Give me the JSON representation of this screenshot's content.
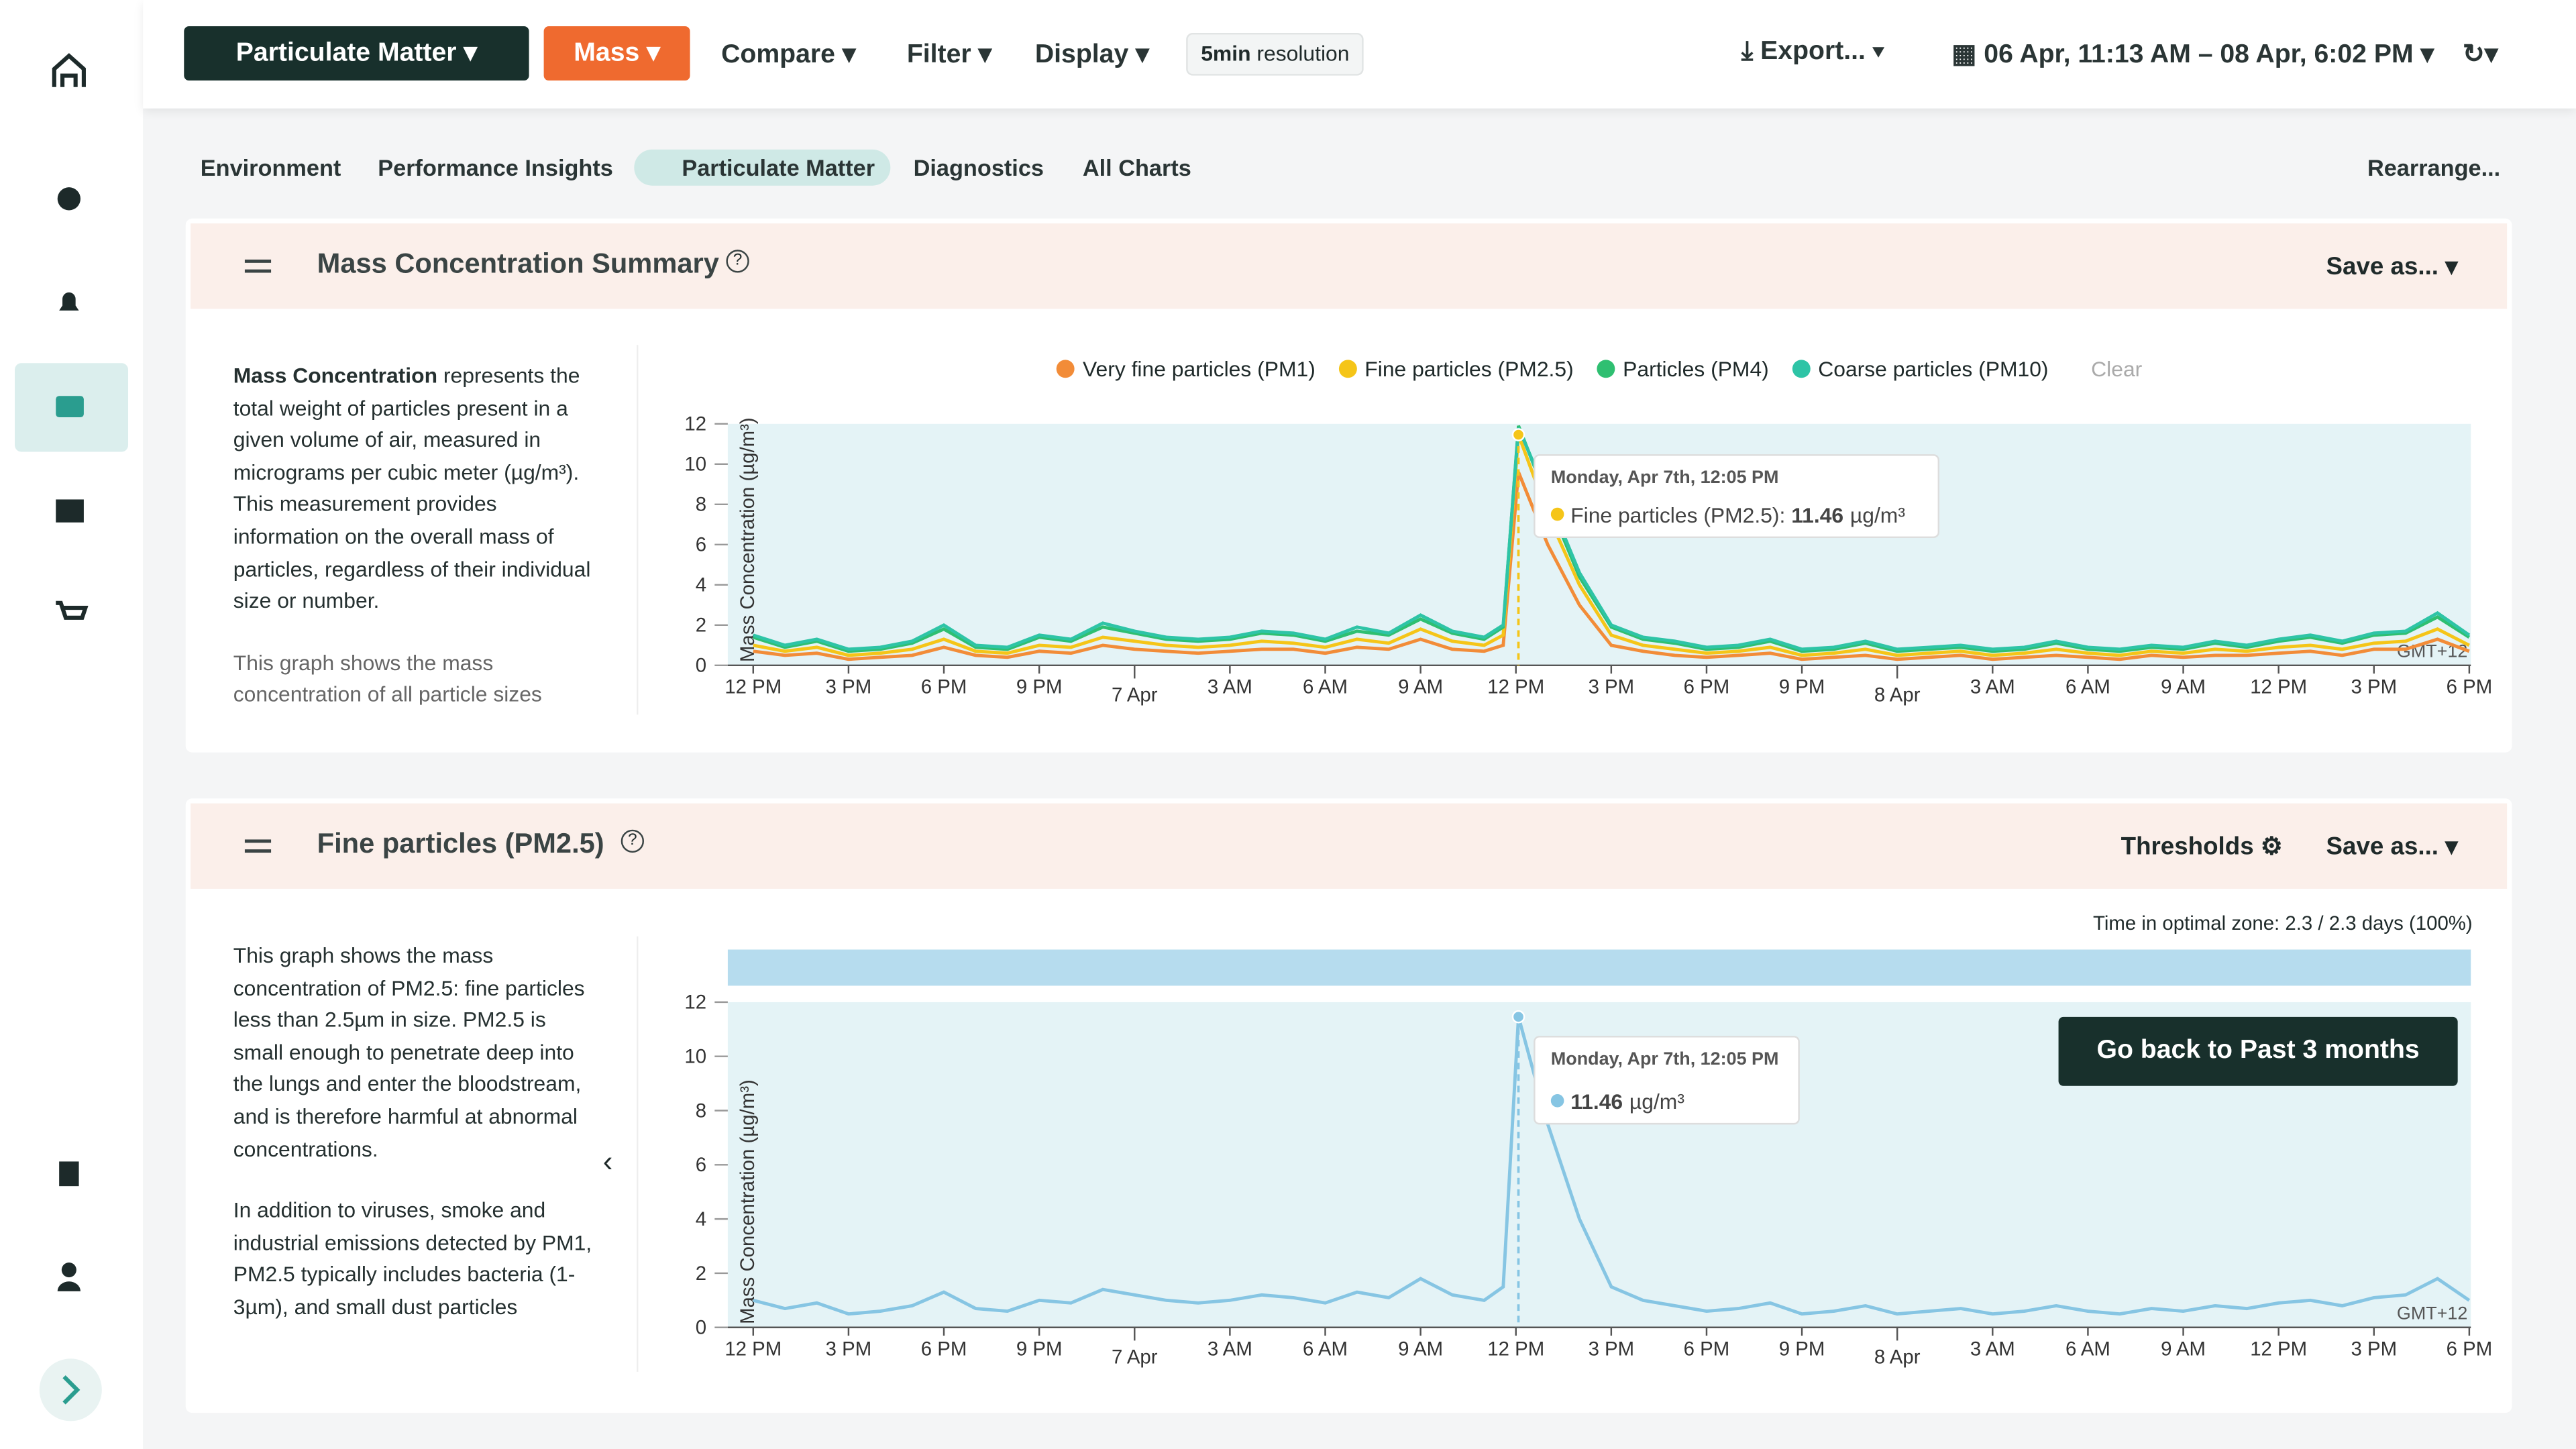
{
  "nav": {
    "product": "Particulate Matter",
    "mode": "Mass",
    "compare": "Compare",
    "filter": "Filter",
    "display": "Display",
    "resolution_value": "5min",
    "resolution_unit": "resolution",
    "export": "Export...",
    "range": "06 Apr, 11:13 AM – 08 Apr, 6:02 PM"
  },
  "tabs": [
    "Environment",
    "Performance Insights",
    "Particulate Matter",
    "Diagnostics",
    "All Charts"
  ],
  "rearrange": "Rearrange...",
  "panels": [
    {
      "title": "Mass Concentration Summary",
      "save": "Save as...",
      "description_bold": "Mass Concentration",
      "description": " represents the total weight of particles present in a given volume of air, measured in micrograms per cubic meter (µg/m³). This measurement provides information on the overall mass of particles, regardless of their individual size or number.",
      "description2": "This graph shows the mass concentration of all particle sizes"
    },
    {
      "title": "Fine particles (PM2.5)",
      "thresholds": "Thresholds",
      "save": "Save as...",
      "optimal": "Time in optimal zone: 2.3 / 2.3 days (100%)",
      "description": "This graph shows the mass concentration of PM2.5: fine particles less than 2.5µm in size. PM2.5 is small enough to penetrate deep into the lungs and enter the bloodstream, and is therefore harmful at abnormal concentrations.",
      "description2": "In addition to viruses, smoke and industrial emissions detected by PM1, PM2.5 typically includes bacteria (1-3µm), and small dust particles",
      "back": "Go back to Past 3 months"
    }
  ],
  "chart_data": [
    {
      "type": "line",
      "ylabel": "Mass Concentration (µg/m³)",
      "clear": "Clear",
      "timezone": "GMT+12",
      "x": [
        0,
        1,
        2,
        3,
        4,
        5,
        6,
        7,
        8,
        9,
        10,
        11,
        12,
        13,
        14,
        15,
        16,
        17,
        18,
        19,
        20,
        21,
        22,
        23,
        23.6,
        24.08,
        25,
        26,
        27,
        28,
        29,
        30,
        31,
        32,
        33,
        34,
        35,
        36,
        37,
        38,
        39,
        40,
        41,
        42,
        43,
        44,
        45,
        46,
        47,
        48,
        49,
        50,
        51,
        52,
        53,
        54
      ],
      "xlim": [
        -0.8,
        54.05
      ],
      "xticks": [
        {
          "value": 0,
          "label": "12 PM"
        },
        {
          "value": 3,
          "label": "3 PM"
        },
        {
          "value": 6,
          "label": "6 PM"
        },
        {
          "value": 9,
          "label": "9 PM"
        },
        {
          "value": 12,
          "label": "7 Apr"
        },
        {
          "value": 15,
          "label": "3 AM"
        },
        {
          "value": 18,
          "label": "6 AM"
        },
        {
          "value": 21,
          "label": "9 AM"
        },
        {
          "value": 24,
          "label": "12 PM"
        },
        {
          "value": 27,
          "label": "3 PM"
        },
        {
          "value": 30,
          "label": "6 PM"
        },
        {
          "value": 33,
          "label": "9 PM"
        },
        {
          "value": 36,
          "label": "8 Apr"
        },
        {
          "value": 39,
          "label": "3 AM"
        },
        {
          "value": 42,
          "label": "6 AM"
        },
        {
          "value": 45,
          "label": "9 AM"
        },
        {
          "value": 48,
          "label": "12 PM"
        },
        {
          "value": 51,
          "label": "3 PM"
        },
        {
          "value": 54,
          "label": "6 PM"
        }
      ],
      "ylim": [
        0,
        12
      ],
      "yticks": [
        0,
        2,
        4,
        6,
        8,
        10,
        12
      ],
      "series": [
        {
          "name": "Very fine particles (PM1)",
          "color": "#f28c38",
          "values": [
            0.7,
            0.5,
            0.6,
            0.3,
            0.4,
            0.5,
            0.9,
            0.5,
            0.4,
            0.7,
            0.6,
            1.0,
            0.8,
            0.7,
            0.6,
            0.7,
            0.8,
            0.8,
            0.6,
            0.9,
            0.8,
            1.3,
            0.8,
            0.7,
            1.0,
            9.6,
            6.0,
            3.0,
            1.0,
            0.7,
            0.5,
            0.4,
            0.5,
            0.6,
            0.3,
            0.4,
            0.5,
            0.3,
            0.4,
            0.5,
            0.3,
            0.4,
            0.5,
            0.4,
            0.3,
            0.5,
            0.4,
            0.5,
            0.5,
            0.6,
            0.7,
            0.5,
            0.8,
            0.8,
            1.3,
            0.7
          ]
        },
        {
          "name": "Fine particles (PM2.5)",
          "color": "#f5c518",
          "values": [
            1.0,
            0.7,
            0.9,
            0.5,
            0.6,
            0.8,
            1.3,
            0.7,
            0.6,
            1.0,
            0.9,
            1.4,
            1.2,
            1.0,
            0.9,
            1.0,
            1.2,
            1.1,
            0.9,
            1.3,
            1.1,
            1.8,
            1.2,
            1.0,
            1.5,
            11.46,
            7.5,
            4.0,
            1.5,
            1.0,
            0.8,
            0.6,
            0.7,
            0.9,
            0.5,
            0.6,
            0.8,
            0.5,
            0.6,
            0.7,
            0.5,
            0.6,
            0.8,
            0.6,
            0.5,
            0.7,
            0.6,
            0.8,
            0.7,
            0.9,
            1.0,
            0.8,
            1.1,
            1.2,
            1.8,
            1.0
          ]
        },
        {
          "name": "Particles (PM4)",
          "color": "#2fbf71",
          "values": [
            1.4,
            0.9,
            1.2,
            0.7,
            0.8,
            1.1,
            1.8,
            0.9,
            0.8,
            1.4,
            1.2,
            1.9,
            1.6,
            1.3,
            1.2,
            1.3,
            1.6,
            1.5,
            1.2,
            1.7,
            1.5,
            2.3,
            1.6,
            1.3,
            1.9,
            11.9,
            8.2,
            4.4,
            1.9,
            1.3,
            1.1,
            0.8,
            0.9,
            1.2,
            0.7,
            0.8,
            1.1,
            0.7,
            0.8,
            0.9,
            0.7,
            0.8,
            1.1,
            0.8,
            0.7,
            0.9,
            0.8,
            1.1,
            0.9,
            1.2,
            1.4,
            1.1,
            1.5,
            1.6,
            2.4,
            1.4
          ]
        },
        {
          "name": "Coarse particles (PM10)",
          "color": "#2ec4a6",
          "values": [
            1.5,
            1.0,
            1.3,
            0.8,
            0.9,
            1.2,
            2.0,
            1.0,
            0.9,
            1.5,
            1.3,
            2.1,
            1.7,
            1.4,
            1.3,
            1.4,
            1.7,
            1.6,
            1.3,
            1.9,
            1.6,
            2.5,
            1.7,
            1.4,
            2.0,
            11.8,
            8.4,
            4.6,
            2.0,
            1.4,
            1.2,
            0.9,
            1.0,
            1.3,
            0.8,
            0.9,
            1.2,
            0.8,
            0.9,
            1.0,
            0.8,
            0.9,
            1.2,
            0.9,
            0.8,
            1.0,
            0.9,
            1.2,
            1.0,
            1.3,
            1.5,
            1.2,
            1.6,
            1.7,
            2.6,
            1.5
          ]
        }
      ],
      "tooltip": {
        "date": "Monday, Apr 7th, 12:05 PM",
        "label": "Fine particles (PM2.5):",
        "unit": "µg/m³"
      }
    },
    {
      "type": "line",
      "ylabel": "Mass Concentration (µg/m³)",
      "timezone": "GMT+12",
      "x": [
        0,
        1,
        2,
        3,
        4,
        5,
        6,
        7,
        8,
        9,
        10,
        11,
        12,
        13,
        14,
        15,
        16,
        17,
        18,
        19,
        20,
        21,
        22,
        23,
        23.6,
        24.08,
        25,
        26,
        27,
        28,
        29,
        30,
        31,
        32,
        33,
        34,
        35,
        36,
        37,
        38,
        39,
        40,
        41,
        42,
        43,
        44,
        45,
        46,
        47,
        48,
        49,
        50,
        51,
        52,
        53,
        54
      ],
      "xlim": [
        -0.8,
        54.05
      ],
      "xticks": [
        {
          "value": 0,
          "label": "12 PM"
        },
        {
          "value": 3,
          "label": "3 PM"
        },
        {
          "value": 6,
          "label": "6 PM"
        },
        {
          "value": 9,
          "label": "9 PM"
        },
        {
          "value": 12,
          "label": "7 Apr"
        },
        {
          "value": 15,
          "label": "3 AM"
        },
        {
          "value": 18,
          "label": "6 AM"
        },
        {
          "value": 21,
          "label": "9 AM"
        },
        {
          "value": 24,
          "label": "12 PM"
        },
        {
          "value": 27,
          "label": "3 PM"
        },
        {
          "value": 30,
          "label": "6 PM"
        },
        {
          "value": 33,
          "label": "9 PM"
        },
        {
          "value": 36,
          "label": "8 Apr"
        },
        {
          "value": 39,
          "label": "3 AM"
        },
        {
          "value": 42,
          "label": "6 AM"
        },
        {
          "value": 45,
          "label": "9 AM"
        },
        {
          "value": 48,
          "label": "12 PM"
        },
        {
          "value": 51,
          "label": "3 PM"
        },
        {
          "value": 54,
          "label": "6 PM"
        }
      ],
      "ylim": [
        0,
        12
      ],
      "yticks": [
        0,
        2,
        4,
        6,
        8,
        10,
        12
      ],
      "series": [
        {
          "color": "#86c5e3",
          "values": [
            1.0,
            0.7,
            0.9,
            0.5,
            0.6,
            0.8,
            1.3,
            0.7,
            0.6,
            1.0,
            0.9,
            1.4,
            1.2,
            1.0,
            0.9,
            1.0,
            1.2,
            1.1,
            0.9,
            1.3,
            1.1,
            1.8,
            1.2,
            1.0,
            1.5,
            11.46,
            7.5,
            4.0,
            1.5,
            1.0,
            0.8,
            0.6,
            0.7,
            0.9,
            0.5,
            0.6,
            0.8,
            0.5,
            0.6,
            0.7,
            0.5,
            0.6,
            0.8,
            0.6,
            0.5,
            0.7,
            0.6,
            0.8,
            0.7,
            0.9,
            1.0,
            0.8,
            1.1,
            1.2,
            1.8,
            1.0
          ]
        }
      ],
      "tooltip": {
        "date": "Monday, Apr 7th, 12:05 PM",
        "unit": "µg/m³"
      }
    }
  ]
}
